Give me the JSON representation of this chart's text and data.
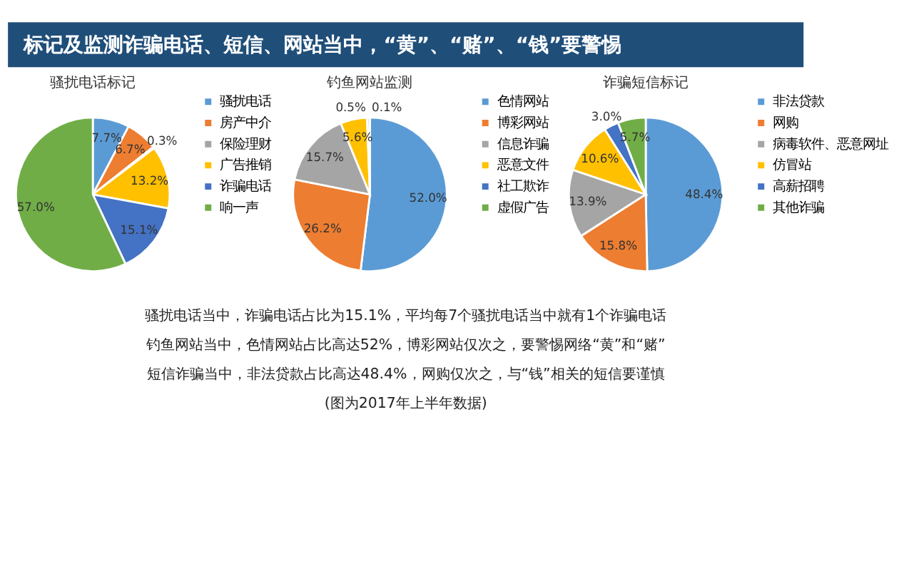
{
  "chart_data": [
    {
      "type": "other",
      "title": "标记及监测诈骗电话、短信、网站当中，“黄”、“赌”、“钱”要警惕"
    },
    {
      "type": "pie",
      "title": "骚扰电话标记",
      "legend": "right",
      "categories": [
        "骚扰电话",
        "房产中介",
        "保险理财",
        "广告推销",
        "诈骗电话",
        "响一声"
      ],
      "values": [
        7.7,
        6.7,
        0.3,
        13.2,
        15.1,
        57.0
      ],
      "value_labels": [
        "7.7%",
        "6.7%",
        "0.3%",
        "13.2%",
        "15.1%",
        "57.0%"
      ],
      "colors": [
        "#5b9bd5",
        "#ed7d31",
        "#a5a5a5",
        "#ffc000",
        "#4472c4",
        "#70ad47"
      ]
    },
    {
      "type": "pie",
      "title": "钓鱼网站监测",
      "legend": "right",
      "categories": [
        "色情网站",
        "博彩网站",
        "信息诈骗",
        "恶意文件",
        "社工欺诈",
        "虚假广告"
      ],
      "values": [
        52.0,
        26.2,
        15.7,
        5.6,
        0.5,
        0.1
      ],
      "value_labels": [
        "52.0%",
        "26.2%",
        "15.7%",
        "5.6%",
        "0.5%",
        "0.1%"
      ],
      "colors": [
        "#5b9bd5",
        "#ed7d31",
        "#a5a5a5",
        "#ffc000",
        "#4472c4",
        "#70ad47"
      ]
    },
    {
      "type": "pie",
      "title": "诈骗短信标记",
      "legend": "right",
      "categories": [
        "非法贷款",
        "网购",
        "病毒软件、恶意网址",
        "仿冒站",
        "高薪招聘",
        "其他诈骗"
      ],
      "values": [
        48.4,
        15.8,
        13.9,
        10.6,
        3.0,
        5.7
      ],
      "value_labels": [
        "48.4%",
        "15.8%",
        "13.9%",
        "10.6%",
        "3.0%",
        "5.7%"
      ],
      "colors": [
        "#5b9bd5",
        "#ed7d31",
        "#a5a5a5",
        "#ffc000",
        "#4472c4",
        "#70ad47"
      ]
    },
    {
      "type": "other",
      "annotations": [
        "骚扰电话当中，诈骗电话占比为15.1%，平均每7个骚扰电话当中就有1个诈骗电话",
        "钓鱼网站当中，色情网站占比高达52%，博彩网站仅次之，要警惕网络“黄”和“赌”",
        "短信诈骗当中，非法贷款占比高达48.4%，网购仅次之，与“钱”相关的短信要谨慎",
        "(图为2017年上半年数据)"
      ]
    }
  ]
}
